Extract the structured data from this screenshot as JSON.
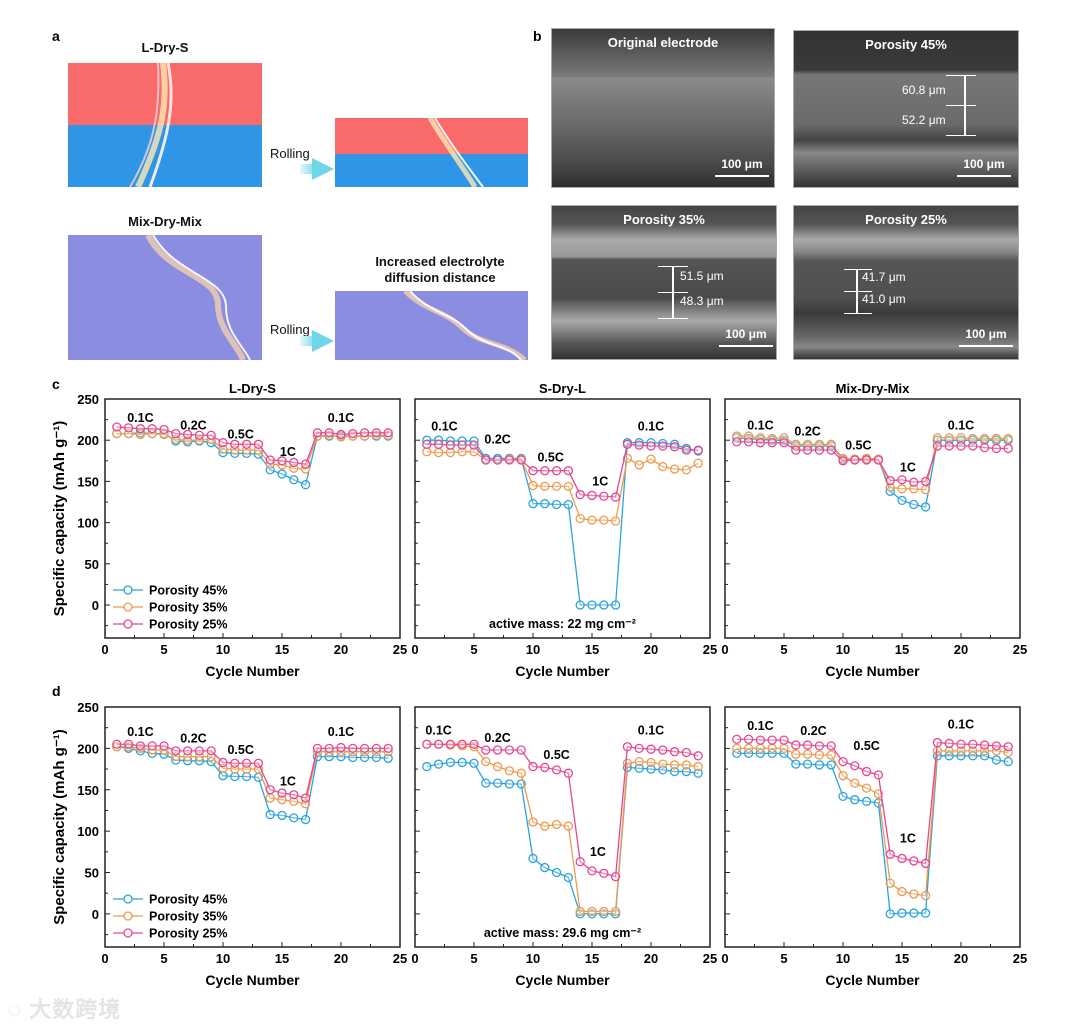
{
  "panel_a": {
    "letter": "a",
    "top_title": "L-Dry-S",
    "bottom_title": "Mix-Dry-Mix",
    "rolling_label": "Rolling",
    "annotation_line1": "Increased electrolyte",
    "annotation_line2": "diffusion distance",
    "colors": {
      "red": "#f96a6a",
      "blue": "#2f95e6",
      "purple": "#8a8de0"
    }
  },
  "panel_b": {
    "letter": "b",
    "images": [
      {
        "title": "Original electrode",
        "scale": "100 μm",
        "measurements": []
      },
      {
        "title": "Porosity 45%",
        "scale": "100 μm",
        "measurements": [
          "60.8 μm",
          "52.2 μm"
        ]
      },
      {
        "title": "Porosity 35%",
        "scale": "100 μm",
        "measurements": [
          "51.5 μm",
          "48.3 μm"
        ]
      },
      {
        "title": "Porosity 25%",
        "scale": "100 μm",
        "measurements": [
          "41.7 μm",
          "41.0 μm"
        ]
      }
    ]
  },
  "row_letters": {
    "c": "c",
    "d": "d"
  },
  "watermark": "大数跨境",
  "chart_data": [
    {
      "type": "line",
      "panel": "c",
      "title": "L-Dry-S",
      "xlabel": "Cycle Number",
      "ylabel": "Specific capacity (mAh g⁻¹)",
      "xlim": [
        0,
        25
      ],
      "ylim": [
        -40,
        250
      ],
      "xticks": [
        0,
        5,
        10,
        15,
        20,
        25
      ],
      "yticks": [
        0,
        50,
        100,
        150,
        200,
        250
      ],
      "legend": "bottom-left",
      "annotation": "",
      "rate_labels": [
        {
          "text": "0.1C",
          "x": 3,
          "y": 222
        },
        {
          "text": "0.2C",
          "x": 7.5,
          "y": 213
        },
        {
          "text": "0.5C",
          "x": 11.5,
          "y": 202
        },
        {
          "text": "1C",
          "x": 15.5,
          "y": 181
        },
        {
          "text": "0.1C",
          "x": 20,
          "y": 222
        }
      ],
      "x": [
        1,
        2,
        3,
        4,
        5,
        6,
        7,
        8,
        9,
        10,
        11,
        12,
        13,
        14,
        15,
        16,
        17,
        18,
        19,
        20,
        21,
        22,
        23,
        24
      ],
      "series": [
        {
          "name": "Porosity 45%",
          "color": "#29a3dc",
          "values": [
            208,
            208,
            209,
            208,
            208,
            199,
            198,
            199,
            197,
            185,
            184,
            184,
            183,
            164,
            159,
            152,
            146,
            205,
            205,
            205,
            205,
            205,
            205,
            205
          ]
        },
        {
          "name": "Porosity 35%",
          "color": "#ee9a4c",
          "values": [
            208,
            208,
            207,
            208,
            207,
            201,
            200,
            200,
            201,
            189,
            188,
            188,
            188,
            171,
            170,
            166,
            165,
            205,
            206,
            204,
            205,
            205,
            206,
            206
          ]
        },
        {
          "name": "Porosity 25%",
          "color": "#e5468f",
          "values": [
            216,
            215,
            214,
            214,
            213,
            208,
            207,
            206,
            206,
            197,
            195,
            195,
            195,
            176,
            175,
            173,
            171,
            209,
            209,
            207,
            208,
            209,
            209,
            209
          ]
        }
      ]
    },
    {
      "type": "line",
      "panel": "c",
      "title": "S-Dry-L",
      "xlabel": "Cycle Number",
      "ylabel": "",
      "xlim": [
        0,
        25
      ],
      "ylim": [
        -40,
        250
      ],
      "xticks": [
        0,
        5,
        10,
        15,
        20,
        25
      ],
      "yticks": [
        0,
        50,
        100,
        150,
        200,
        250
      ],
      "legend": "none",
      "annotation": "active mass: 22 mg cm⁻²",
      "rate_labels": [
        {
          "text": "0.1C",
          "x": 2.5,
          "y": 212
        },
        {
          "text": "0.2C",
          "x": 7,
          "y": 196
        },
        {
          "text": "0.5C",
          "x": 11.5,
          "y": 174
        },
        {
          "text": "1C",
          "x": 15.7,
          "y": 145
        },
        {
          "text": "0.1C",
          "x": 20,
          "y": 212
        }
      ],
      "x": [
        1,
        2,
        3,
        4,
        5,
        6,
        7,
        8,
        9,
        10,
        11,
        12,
        13,
        14,
        15,
        16,
        17,
        18,
        19,
        20,
        21,
        22,
        23,
        24
      ],
      "series": [
        {
          "name": "Porosity 45%",
          "color": "#29a3dc",
          "values": [
            200,
            200,
            199,
            199,
            199,
            178,
            178,
            178,
            178,
            123,
            123,
            122,
            122,
            0,
            0,
            0,
            0,
            197,
            197,
            197,
            196,
            195,
            190,
            187
          ]
        },
        {
          "name": "Porosity 35%",
          "color": "#ee9a4c",
          "values": [
            186,
            185,
            185,
            186,
            186,
            176,
            176,
            177,
            177,
            145,
            144,
            144,
            144,
            105,
            103,
            103,
            102,
            178,
            170,
            177,
            168,
            165,
            164,
            172
          ]
        },
        {
          "name": "Porosity 25%",
          "color": "#e5468f",
          "values": [
            195,
            195,
            194,
            194,
            194,
            176,
            176,
            176,
            176,
            163,
            163,
            163,
            163,
            134,
            133,
            132,
            131,
            195,
            194,
            193,
            193,
            192,
            188,
            188
          ]
        }
      ]
    },
    {
      "type": "line",
      "panel": "c",
      "title": "Mix-Dry-Mix",
      "xlabel": "Cycle Number",
      "ylabel": "",
      "xlim": [
        0,
        25
      ],
      "ylim": [
        -40,
        250
      ],
      "xticks": [
        0,
        5,
        10,
        15,
        20,
        25
      ],
      "yticks": [
        0,
        50,
        100,
        150,
        200,
        250
      ],
      "legend": "none",
      "annotation": "",
      "rate_labels": [
        {
          "text": "0.1C",
          "x": 3,
          "y": 213
        },
        {
          "text": "0.2C",
          "x": 7,
          "y": 206
        },
        {
          "text": "0.5C",
          "x": 11.3,
          "y": 189
        },
        {
          "text": "1C",
          "x": 15.5,
          "y": 162
        },
        {
          "text": "0.1C",
          "x": 20,
          "y": 213
        }
      ],
      "x": [
        1,
        2,
        3,
        4,
        5,
        6,
        7,
        8,
        9,
        10,
        11,
        12,
        13,
        14,
        15,
        16,
        17,
        18,
        19,
        20,
        21,
        22,
        23,
        24
      ],
      "series": [
        {
          "name": "Porosity 45%",
          "color": "#29a3dc",
          "values": [
            203,
            202,
            201,
            200,
            200,
            193,
            193,
            193,
            193,
            177,
            177,
            177,
            177,
            138,
            127,
            122,
            119,
            200,
            200,
            200,
            200,
            200,
            200,
            200
          ]
        },
        {
          "name": "Porosity 35%",
          "color": "#ee9a4c",
          "values": [
            205,
            205,
            203,
            202,
            203,
            195,
            195,
            195,
            195,
            178,
            177,
            178,
            177,
            143,
            141,
            141,
            140,
            203,
            203,
            203,
            202,
            202,
            202,
            202
          ]
        },
        {
          "name": "Porosity 25%",
          "color": "#e5468f",
          "values": [
            198,
            198,
            197,
            197,
            197,
            188,
            188,
            188,
            188,
            175,
            176,
            176,
            176,
            151,
            152,
            149,
            150,
            193,
            193,
            193,
            193,
            191,
            190,
            190
          ]
        }
      ]
    },
    {
      "type": "line",
      "panel": "d",
      "title": "",
      "xlabel": "Cycle Number",
      "ylabel": "Specific capacity (mAh g⁻¹)",
      "xlim": [
        0,
        25
      ],
      "ylim": [
        -40,
        250
      ],
      "xticks": [
        0,
        5,
        10,
        15,
        20,
        25
      ],
      "yticks": [
        0,
        50,
        100,
        150,
        200,
        250
      ],
      "legend": "bottom-left",
      "annotation": "",
      "rate_labels": [
        {
          "text": "0.1C",
          "x": 3,
          "y": 215
        },
        {
          "text": "0.2C",
          "x": 7.5,
          "y": 207
        },
        {
          "text": "0.5C",
          "x": 11.5,
          "y": 193
        },
        {
          "text": "1C",
          "x": 15.5,
          "y": 155
        },
        {
          "text": "0.1C",
          "x": 20,
          "y": 215
        }
      ],
      "x": [
        1,
        2,
        3,
        4,
        5,
        6,
        7,
        8,
        9,
        10,
        11,
        12,
        13,
        14,
        15,
        16,
        17,
        18,
        19,
        20,
        21,
        22,
        23,
        24
      ],
      "series": [
        {
          "name": "Porosity 45%",
          "color": "#29a3dc",
          "values": [
            202,
            200,
            197,
            194,
            193,
            186,
            185,
            185,
            184,
            167,
            166,
            166,
            165,
            120,
            119,
            116,
            114,
            190,
            190,
            190,
            189,
            189,
            189,
            188
          ]
        },
        {
          "name": "Porosity 35%",
          "color": "#ee9a4c",
          "values": [
            202,
            202,
            200,
            198,
            198,
            190,
            190,
            190,
            190,
            176,
            175,
            175,
            175,
            140,
            138,
            136,
            133,
            196,
            196,
            196,
            196,
            196,
            196,
            196
          ]
        },
        {
          "name": "Porosity 25%",
          "color": "#e5468f",
          "values": [
            205,
            205,
            203,
            203,
            203,
            197,
            197,
            197,
            197,
            183,
            182,
            182,
            182,
            150,
            146,
            144,
            140,
            200,
            200,
            201,
            200,
            200,
            200,
            200
          ]
        }
      ]
    },
    {
      "type": "line",
      "panel": "d",
      "title": "",
      "xlabel": "Cycle Number",
      "ylabel": "",
      "xlim": [
        0,
        25
      ],
      "ylim": [
        -40,
        250
      ],
      "xticks": [
        0,
        5,
        10,
        15,
        20,
        25
      ],
      "yticks": [
        0,
        50,
        100,
        150,
        200,
        250
      ],
      "legend": "none",
      "annotation": "active mass: 29.6 mg cm⁻²",
      "rate_labels": [
        {
          "text": "0.1C",
          "x": 2,
          "y": 217
        },
        {
          "text": "0.2C",
          "x": 7,
          "y": 208
        },
        {
          "text": "0.5C",
          "x": 12,
          "y": 187
        },
        {
          "text": "1C",
          "x": 15.5,
          "y": 70
        },
        {
          "text": "0.1C",
          "x": 20,
          "y": 217
        }
      ],
      "x": [
        1,
        2,
        3,
        4,
        5,
        6,
        7,
        8,
        9,
        10,
        11,
        12,
        13,
        14,
        15,
        16,
        17,
        18,
        19,
        20,
        21,
        22,
        23,
        24
      ],
      "series": [
        {
          "name": "Porosity 45%",
          "color": "#29a3dc",
          "values": [
            178,
            181,
            183,
            183,
            182,
            158,
            158,
            157,
            157,
            67,
            56,
            50,
            44,
            0,
            0,
            0,
            0,
            177,
            176,
            175,
            174,
            172,
            172,
            170
          ]
        },
        {
          "name": "Porosity 35%",
          "color": "#ee9a4c",
          "values": [
            205,
            205,
            204,
            203,
            202,
            184,
            178,
            173,
            170,
            111,
            106,
            108,
            106,
            3,
            3,
            3,
            3,
            182,
            184,
            183,
            181,
            180,
            180,
            178
          ]
        },
        {
          "name": "Porosity 25%",
          "color": "#e5468f",
          "values": [
            205,
            205,
            205,
            205,
            205,
            198,
            198,
            198,
            198,
            178,
            177,
            174,
            170,
            63,
            52,
            49,
            45,
            202,
            200,
            199,
            198,
            196,
            195,
            191
          ]
        }
      ]
    },
    {
      "type": "line",
      "panel": "d",
      "title": "",
      "xlabel": "Cycle Number",
      "ylabel": "",
      "xlim": [
        0,
        25
      ],
      "ylim": [
        -40,
        250
      ],
      "xticks": [
        0,
        5,
        10,
        15,
        20,
        25
      ],
      "yticks": [
        0,
        50,
        100,
        150,
        200,
        250
      ],
      "legend": "none",
      "annotation": "",
      "rate_labels": [
        {
          "text": "0.1C",
          "x": 3,
          "y": 222
        },
        {
          "text": "0.2C",
          "x": 7.5,
          "y": 216
        },
        {
          "text": "0.5C",
          "x": 12,
          "y": 198
        },
        {
          "text": "1C",
          "x": 15.5,
          "y": 86
        },
        {
          "text": "0.1C",
          "x": 20,
          "y": 224
        }
      ],
      "x": [
        1,
        2,
        3,
        4,
        5,
        6,
        7,
        8,
        9,
        10,
        11,
        12,
        13,
        14,
        15,
        16,
        17,
        18,
        19,
        20,
        21,
        22,
        23,
        24
      ],
      "series": [
        {
          "name": "Porosity 45%",
          "color": "#29a3dc",
          "values": [
            194,
            194,
            194,
            194,
            194,
            181,
            181,
            180,
            180,
            142,
            138,
            136,
            134,
            0,
            1,
            1,
            1,
            191,
            191,
            191,
            191,
            191,
            186,
            184
          ]
        },
        {
          "name": "Porosity 35%",
          "color": "#ee9a4c",
          "values": [
            200,
            200,
            200,
            200,
            200,
            193,
            193,
            192,
            192,
            167,
            158,
            152,
            145,
            37,
            27,
            24,
            22,
            197,
            197,
            197,
            197,
            197,
            197,
            195
          ]
        },
        {
          "name": "Porosity 25%",
          "color": "#e5468f",
          "values": [
            211,
            211,
            210,
            210,
            210,
            204,
            204,
            203,
            203,
            184,
            179,
            172,
            168,
            72,
            67,
            64,
            61,
            207,
            206,
            205,
            205,
            204,
            203,
            202
          ]
        }
      ]
    }
  ]
}
